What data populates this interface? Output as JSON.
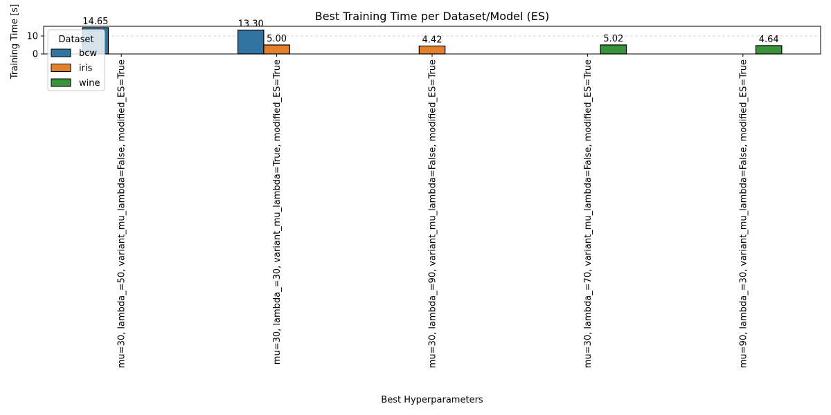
{
  "chart_data": {
    "type": "bar",
    "title": "Best Training Time per Dataset/Model (ES)",
    "xlabel": "Best Hyperparameters",
    "ylabel": "Training Time [s]",
    "categories": [
      "mu=30, lambda_=50, variant_mu_lambda=False, modified_ES=True",
      "mu=30, lambda_=30, variant_mu_lambda=True, modified_ES=True",
      "mu=30, lambda_=90, variant_mu_lambda=False, modified_ES=True",
      "mu=30, lambda_=70, variant_mu_lambda=False, modified_ES=True",
      "mu=90, lambda_=30, variant_mu_lambda=False, modified_ES=True"
    ],
    "series": [
      {
        "name": "bcw",
        "color": "#3274a1",
        "values": [
          14.65,
          13.3,
          null,
          null,
          null
        ]
      },
      {
        "name": "iris",
        "color": "#e1812c",
        "values": [
          null,
          5.0,
          4.42,
          null,
          null
        ]
      },
      {
        "name": "wine",
        "color": "#3a923a",
        "values": [
          null,
          null,
          null,
          5.02,
          4.64
        ]
      }
    ],
    "data_labels": [
      {
        "series": 0,
        "category": 0,
        "text": "14.65"
      },
      {
        "series": 0,
        "category": 1,
        "text": "13.30"
      },
      {
        "series": 1,
        "category": 1,
        "text": "5.00"
      },
      {
        "series": 1,
        "category": 2,
        "text": "4.42"
      },
      {
        "series": 2,
        "category": 3,
        "text": "5.02"
      },
      {
        "series": 2,
        "category": 4,
        "text": "4.64"
      }
    ],
    "yticks": [
      0,
      10
    ],
    "ylim": [
      0,
      15.4
    ],
    "grid": "y-dashed",
    "legend": {
      "title": "Dataset",
      "placement": "upper-left",
      "entries": [
        "bcw",
        "iris",
        "wine"
      ]
    }
  }
}
